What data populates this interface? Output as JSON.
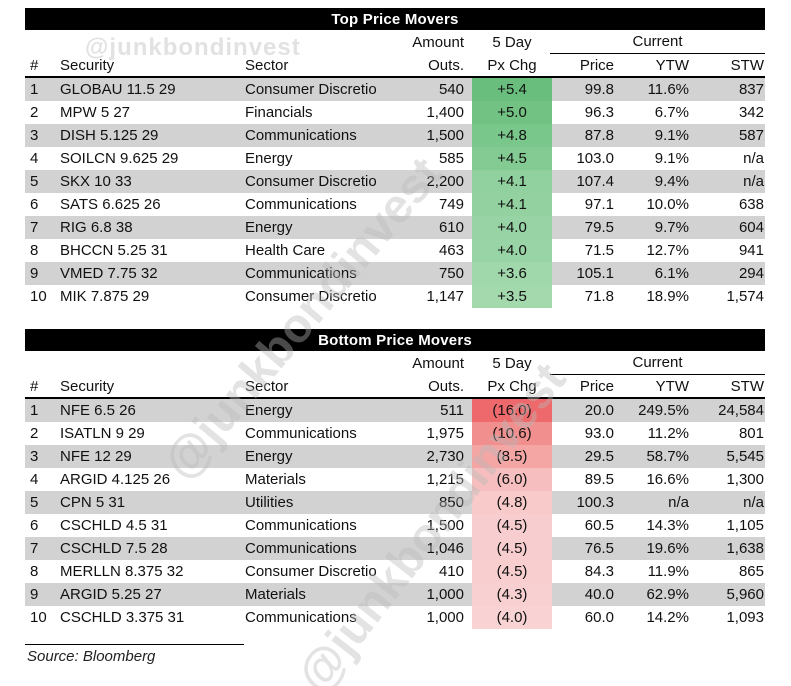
{
  "watermark": {
    "handle": "@junkbondinvest"
  },
  "source": "Source: Bloomberg",
  "colors": {
    "stripe": "#d2d2d2",
    "title_bg": "#000000",
    "title_fg": "#ffffff",
    "gain_dark": "#69be7d",
    "gain_light": "#a4d9ae",
    "loss_dark": "#ed696c",
    "loss_light": "#f9d3d4"
  },
  "tables": [
    {
      "title": "Top Price Movers",
      "headers": {
        "num": "#",
        "security": "Security",
        "sector": "Sector",
        "amount_top": "Amount",
        "amount_bottom": "Outs.",
        "chg_top": "5 Day",
        "chg_bottom": "Px Chg",
        "current": "Current",
        "price": "Price",
        "ytw": "YTW",
        "stw": "STW"
      },
      "rows": [
        {
          "num": "1",
          "security": "GLOBAU 11.5 29",
          "sector": "Consumer Discretio",
          "amount": "540",
          "chg": "+5.4",
          "chg_color": "#69be7d",
          "price": "99.8",
          "ytw": "11.6%",
          "stw": "837"
        },
        {
          "num": "2",
          "security": "MPW 5 27",
          "sector": "Financials",
          "amount": "1,400",
          "chg": "+5.0",
          "chg_color": "#72c283",
          "price": "96.3",
          "ytw": "6.7%",
          "stw": "342"
        },
        {
          "num": "3",
          "security": "DISH 5.125 29",
          "sector": "Communications",
          "amount": "1,500",
          "chg": "+4.8",
          "chg_color": "#7ac78b",
          "price": "87.8",
          "ytw": "9.1%",
          "stw": "587"
        },
        {
          "num": "4",
          "security": "SOILCN 9.625 29",
          "sector": "Energy",
          "amount": "585",
          "chg": "+4.5",
          "chg_color": "#83cb93",
          "price": "103.0",
          "ytw": "9.1%",
          "stw": "n/a"
        },
        {
          "num": "5",
          "security": "SKX 10 33",
          "sector": "Consumer Discretio",
          "amount": "2,200",
          "chg": "+4.1",
          "chg_color": "#91d09f",
          "price": "107.4",
          "ytw": "9.4%",
          "stw": "n/a"
        },
        {
          "num": "6",
          "security": "SATS 6.625 26",
          "sector": "Communications",
          "amount": "749",
          "chg": "+4.1",
          "chg_color": "#93d1a1",
          "price": "97.1",
          "ytw": "10.0%",
          "stw": "638"
        },
        {
          "num": "7",
          "security": "RIG 6.8 38",
          "sector": "Energy",
          "amount": "610",
          "chg": "+4.0",
          "chg_color": "#97d3a4",
          "price": "79.5",
          "ytw": "9.7%",
          "stw": "604"
        },
        {
          "num": "8",
          "security": "BHCCN 5.25 31",
          "sector": "Health Care",
          "amount": "463",
          "chg": "+4.0",
          "chg_color": "#99d4a6",
          "price": "71.5",
          "ytw": "12.7%",
          "stw": "941"
        },
        {
          "num": "9",
          "security": "VMED 7.75 32",
          "sector": "Communications",
          "amount": "750",
          "chg": "+3.6",
          "chg_color": "#a0d7ab",
          "price": "105.1",
          "ytw": "6.1%",
          "stw": "294"
        },
        {
          "num": "10",
          "security": "MIK 7.875 29",
          "sector": "Consumer Discretio",
          "amount": "1,147",
          "chg": "+3.5",
          "chg_color": "#a4d9ae",
          "price": "71.8",
          "ytw": "18.9%",
          "stw": "1,574"
        }
      ]
    },
    {
      "title": "Bottom Price Movers",
      "headers": {
        "num": "#",
        "security": "Security",
        "sector": "Sector",
        "amount_top": "Amount",
        "amount_bottom": "Outs.",
        "chg_top": "5 Day",
        "chg_bottom": "Px Chg",
        "current": "Current",
        "price": "Price",
        "ytw": "YTW",
        "stw": "STW"
      },
      "rows": [
        {
          "num": "1",
          "security": "NFE 6.5 26",
          "sector": "Energy",
          "amount": "511",
          "chg": "(16.0)",
          "chg_color": "#ed696c",
          "price": "20.0",
          "ytw": "249.5%",
          "stw": "24,584"
        },
        {
          "num": "2",
          "security": "ISATLN 9 29",
          "sector": "Communications",
          "amount": "1,975",
          "chg": "(10.6)",
          "chg_color": "#f18f8e",
          "price": "93.0",
          "ytw": "11.2%",
          "stw": "801"
        },
        {
          "num": "3",
          "security": "NFE 12 29",
          "sector": "Energy",
          "amount": "2,730",
          "chg": "(8.5)",
          "chg_color": "#f4a6a5",
          "price": "29.5",
          "ytw": "58.7%",
          "stw": "5,545"
        },
        {
          "num": "4",
          "security": "ARGID 4.125 26",
          "sector": "Materials",
          "amount": "1,215",
          "chg": "(6.0)",
          "chg_color": "#f6bebe",
          "price": "89.5",
          "ytw": "16.6%",
          "stw": "1,300"
        },
        {
          "num": "5",
          "security": "CPN 5 31",
          "sector": "Utilities",
          "amount": "850",
          "chg": "(4.8)",
          "chg_color": "#f8caca",
          "price": "100.3",
          "ytw": "n/a",
          "stw": "n/a"
        },
        {
          "num": "6",
          "security": "CSCHLD 4.5 31",
          "sector": "Communications",
          "amount": "1,500",
          "chg": "(4.5)",
          "chg_color": "#f8cdcf",
          "price": "60.5",
          "ytw": "14.3%",
          "stw": "1,105"
        },
        {
          "num": "7",
          "security": "CSCHLD 7.5 28",
          "sector": "Communications",
          "amount": "1,046",
          "chg": "(4.5)",
          "chg_color": "#f8cdcf",
          "price": "76.5",
          "ytw": "19.6%",
          "stw": "1,638"
        },
        {
          "num": "8",
          "security": "MERLLN 8.375 32",
          "sector": "Consumer Discretio",
          "amount": "410",
          "chg": "(4.5)",
          "chg_color": "#f8cecf",
          "price": "84.3",
          "ytw": "11.9%",
          "stw": "865"
        },
        {
          "num": "9",
          "security": "ARGID 5.25 27",
          "sector": "Materials",
          "amount": "1,000",
          "chg": "(4.3)",
          "chg_color": "#f9d0d1",
          "price": "40.0",
          "ytw": "62.9%",
          "stw": "5,960"
        },
        {
          "num": "10",
          "security": "CSCHLD 3.375 31",
          "sector": "Communications",
          "amount": "1,000",
          "chg": "(4.0)",
          "chg_color": "#f9d3d4",
          "price": "60.0",
          "ytw": "14.2%",
          "stw": "1,093"
        }
      ]
    }
  ]
}
